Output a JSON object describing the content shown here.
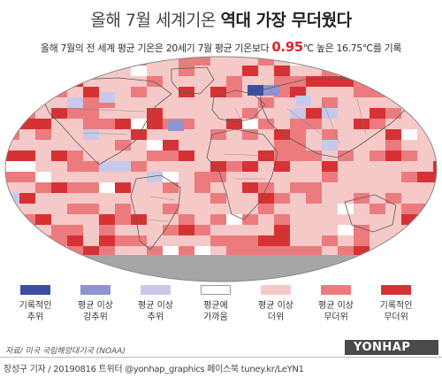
{
  "title": {
    "prefix": "올해 7월 세계기온 ",
    "highlight": "역대 가장 무더웠다"
  },
  "subtitle": {
    "before": "올해 7월의 전 세계 평균 기온은 20세기 7월 평균 기온보다 ",
    "anomaly": "0.95",
    "after": "℃ 높은 16.75℃를 기록"
  },
  "legend": [
    {
      "label": "기록적인\n추위",
      "color": "#3a4fa3"
    },
    {
      "label": "평균 이상\n강추위",
      "color": "#8d93cf"
    },
    {
      "label": "평균 이상\n추위",
      "color": "#c8c9ea"
    },
    {
      "label": "평균에\n가까움",
      "color": "#ffffff"
    },
    {
      "label": "평균 이상\n더위",
      "color": "#f6c9c9"
    },
    {
      "label": "평균 이상\n무더위",
      "color": "#ec7b7d"
    },
    {
      "label": "기록적인\n무더위",
      "color": "#d63234"
    }
  ],
  "map": {
    "ocean_palette": [
      "#f6c9c9",
      "#ec7b7d",
      "#d63234"
    ],
    "missing_color": "#a6a6a6",
    "border_color": "#5a5a5a"
  },
  "source": "자료/ 미국 국립해양대기국 (NOAA)",
  "brand": "YONHAP NEWS",
  "brand_sub": "연합뉴스",
  "credit": "장성구 기자  / 20190816   트위터 @yonhap_graphics  페이스북 tuney.kr/LeYN1"
}
